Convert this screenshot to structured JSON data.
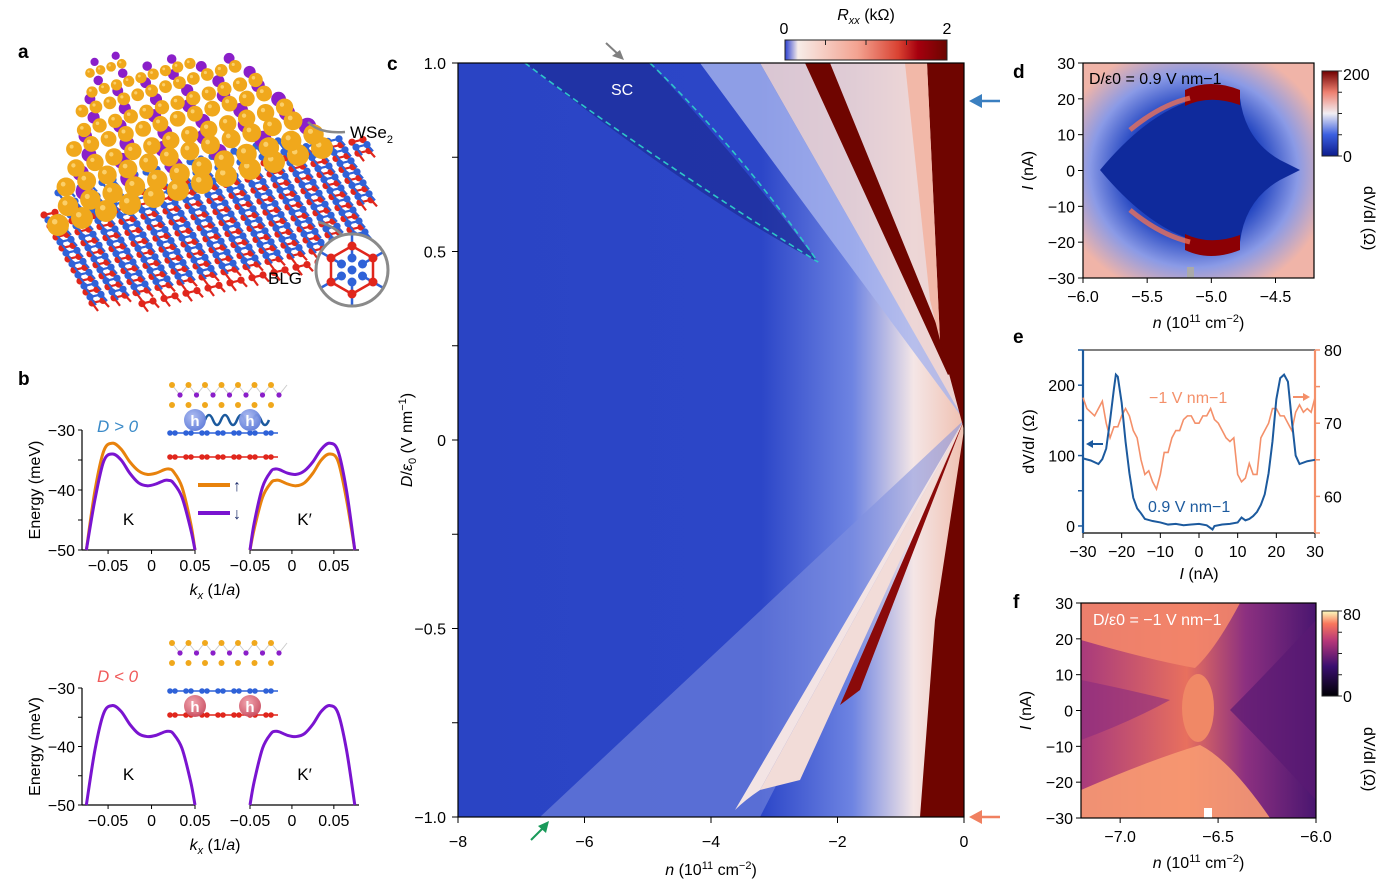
{
  "figure": {
    "panel_labels": [
      "a",
      "b",
      "c",
      "d",
      "e",
      "f"
    ]
  },
  "panel_a": {
    "wse2_label": "WSe",
    "wse2_subscript": "2",
    "blg_label": "BLG",
    "colors": {
      "selenium": "#f0a81c",
      "tungsten": "#8a1fc9",
      "top_graphene": "#2f62d8",
      "bottom_graphene": "#e0261c"
    }
  },
  "panel_b": {
    "top": {
      "condition": "D > 0",
      "condition_color": "#3a8ac8",
      "valley_left": "K",
      "valley_right": "K′",
      "hole_glyph": "h",
      "hole_color": "#6f8ee0"
    },
    "bottom": {
      "condition": "D < 0",
      "condition_color": "#f05a5a",
      "valley_left": "K",
      "valley_right": "K′",
      "hole_glyph": "h",
      "hole_color": "#d85a6e"
    },
    "legend": [
      {
        "label": "↑",
        "color": "#e8820c"
      },
      {
        "label": "↓",
        "color": "#7a14d0"
      }
    ]
  },
  "panel_c": {
    "sc_label": "SC",
    "colorbar": {
      "label": "R_xx (kΩ)",
      "label_main": "R",
      "label_sub": "xx",
      "label_unit": " (kΩ)",
      "min": "0",
      "max": "2"
    },
    "arrow_colors": {
      "top": "#808080",
      "bottom": "#1a9a5a",
      "right_top": "#3a7fc0",
      "right_bottom": "#f08060"
    }
  },
  "panel_d": {
    "annotation": "D/ε0 = 0.9 V nm−1",
    "colorbar": {
      "label": "dV/dI (Ω)",
      "min": "0",
      "max": "200"
    }
  },
  "panel_e": {
    "label_blue": "0.9 V nm−1",
    "label_orange": "−1 V nm−1"
  },
  "panel_f": {
    "annotation": "D/ε0 = −1 V nm−1",
    "colorbar": {
      "label": "dV/dI (Ω)",
      "min": "0",
      "max": "80"
    }
  },
  "chart_data": [
    {
      "id": "b-top",
      "type": "line",
      "title": "D > 0",
      "xlabel": "k_x (1/a)",
      "ylabel": "Energy (meV)",
      "ylim": [
        -50,
        -30
      ],
      "yticks": [
        "−30",
        "−40",
        "−50"
      ],
      "subplots": [
        {
          "valley": "K",
          "xlim": [
            -0.08,
            0.05
          ],
          "xticks": [
            "−0.05",
            "0",
            "0.05"
          ],
          "series": [
            {
              "name": "spin up",
              "color": "#e8820c",
              "x": [
                -0.075,
                -0.065,
                -0.055,
                -0.045,
                -0.035,
                -0.025,
                -0.015,
                -0.005,
                0.005,
                0.015,
                0.02,
                0.025,
                0.035,
                0.045,
                0.05
              ],
              "y": [
                -50,
                -40,
                -33.5,
                -32.2,
                -33.2,
                -35.3,
                -36.8,
                -37.4,
                -37.2,
                -36.6,
                -36.5,
                -36.9,
                -39.5,
                -45.5,
                -50
              ]
            },
            {
              "name": "spin down",
              "color": "#7a14d0",
              "x": [
                -0.075,
                -0.065,
                -0.055,
                -0.045,
                -0.035,
                -0.025,
                -0.015,
                -0.005,
                0.005,
                0.015,
                0.02,
                0.025,
                0.035,
                0.045,
                0.05
              ],
              "y": [
                -50,
                -41.5,
                -35.2,
                -34,
                -35,
                -37.2,
                -38.8,
                -39.3,
                -39,
                -38.4,
                -38.4,
                -38.8,
                -41.2,
                -46.5,
                -50
              ]
            }
          ]
        },
        {
          "valley": "K′",
          "xlim": [
            -0.05,
            0.08
          ],
          "xticks": [
            "−0.05",
            "0",
            "0.05"
          ],
          "series": [
            {
              "name": "spin up",
              "color": "#e8820c",
              "x": [
                -0.05,
                -0.045,
                -0.035,
                -0.025,
                -0.02,
                -0.015,
                -0.005,
                0.005,
                0.015,
                0.025,
                0.035,
                0.045,
                0.055,
                0.065,
                0.075
              ],
              "y": [
                -50,
                -46.5,
                -41.2,
                -38.8,
                -38.4,
                -38.4,
                -39,
                -39.3,
                -38.8,
                -37.2,
                -35,
                -34,
                -35.2,
                -41.5,
                -50
              ]
            },
            {
              "name": "spin down",
              "color": "#7a14d0",
              "x": [
                -0.05,
                -0.045,
                -0.035,
                -0.025,
                -0.02,
                -0.015,
                -0.005,
                0.005,
                0.015,
                0.025,
                0.035,
                0.045,
                0.055,
                0.065,
                0.075
              ],
              "y": [
                -50,
                -45.5,
                -39.5,
                -36.9,
                -36.5,
                -36.6,
                -37.2,
                -37.4,
                -36.8,
                -35.3,
                -33.2,
                -32.2,
                -33.5,
                -40,
                -50
              ]
            }
          ]
        }
      ]
    },
    {
      "id": "b-bottom",
      "type": "line",
      "title": "D < 0",
      "xlabel": "k_x (1/a)",
      "ylabel": "Energy (meV)",
      "ylim": [
        -50,
        -30
      ],
      "yticks": [
        "−30",
        "−40",
        "−50"
      ],
      "subplots": [
        {
          "valley": "K",
          "xlim": [
            -0.08,
            0.05
          ],
          "xticks": [
            "−0.05",
            "0",
            "0.05"
          ],
          "series": [
            {
              "name": "spin up/down (degenerate)",
              "color": "#7a14d0",
              "x": [
                -0.075,
                -0.065,
                -0.055,
                -0.045,
                -0.035,
                -0.025,
                -0.015,
                -0.005,
                0.005,
                0.015,
                0.02,
                0.025,
                0.035,
                0.045,
                0.05
              ],
              "y": [
                -50,
                -40.5,
                -34.3,
                -33,
                -34,
                -36.2,
                -37.8,
                -38.3,
                -38.1,
                -37.5,
                -37.4,
                -37.8,
                -40.3,
                -46,
                -50
              ]
            }
          ]
        },
        {
          "valley": "K′",
          "xlim": [
            -0.05,
            0.08
          ],
          "xticks": [
            "−0.05",
            "0",
            "0.05"
          ],
          "series": [
            {
              "name": "spin up/down (degenerate)",
              "color": "#7a14d0",
              "x": [
                -0.05,
                -0.045,
                -0.035,
                -0.025,
                -0.02,
                -0.015,
                -0.005,
                0.005,
                0.015,
                0.025,
                0.035,
                0.045,
                0.055,
                0.065,
                0.075
              ],
              "y": [
                -50,
                -46,
                -40.3,
                -37.8,
                -37.4,
                -37.5,
                -38.1,
                -38.3,
                -37.8,
                -36.2,
                -34,
                -33,
                -34.3,
                -40.5,
                -50
              ]
            }
          ]
        }
      ]
    },
    {
      "id": "c",
      "type": "heatmap",
      "title": "",
      "xlabel": "n (10^11 cm^-2)",
      "ylabel": "D/ε0 (V nm^-1)",
      "xlim": [
        -8,
        0
      ],
      "ylim": [
        -1.0,
        1.0
      ],
      "xticks": [
        -8,
        -6,
        -4,
        -2,
        0
      ],
      "yticks": [
        -1.0,
        -0.5,
        0,
        0.5,
        1.0
      ],
      "colorbar": {
        "label": "Rxx (kΩ)",
        "range": [
          0,
          2
        ]
      },
      "annotations": [
        {
          "text": "SC",
          "n": -5.3,
          "D": 0.93
        },
        {
          "type": "arrow",
          "color": "gray",
          "n": -5.3,
          "D": 1.0
        },
        {
          "type": "arrow",
          "color": "green",
          "n": -6.6,
          "D": -1.0
        },
        {
          "type": "arrow",
          "color": "blue",
          "n": 0,
          "D": 0.9
        },
        {
          "type": "arrow",
          "color": "orange",
          "n": 0,
          "D": -1.0
        }
      ]
    },
    {
      "id": "d",
      "type": "heatmap",
      "title": "D/ε0 = 0.9 V nm−1",
      "xlabel": "n (10^11 cm^-2)",
      "ylabel": "I (nA)",
      "xlim": [
        -6.0,
        -4.2
      ],
      "ylim": [
        -30,
        30
      ],
      "xticks": [
        "−6.0",
        "−5.5",
        "−5.0",
        "−4.5"
      ],
      "yticks": [
        "−30",
        "−20",
        "−10",
        "0",
        "10",
        "20",
        "30"
      ],
      "colorbar": {
        "label": "dV/dI (Ω)",
        "range": [
          0,
          200
        ]
      },
      "marker": {
        "n": -5.15,
        "color": "gray"
      }
    },
    {
      "id": "e",
      "type": "line",
      "title": "",
      "xlabel": "I (nA)",
      "ylabel": "dV/dI (Ω)",
      "xlim": [
        -30,
        30
      ],
      "ylim": [
        -10,
        250
      ],
      "ylim_right": [
        55,
        80
      ],
      "xticks": [
        "−30",
        "−20",
        "−10",
        "0",
        "10",
        "20",
        "30"
      ],
      "yticks": [
        "0",
        "100",
        "200"
      ],
      "yticks_right": [
        "60",
        "70",
        "80"
      ],
      "series": [
        {
          "name": "0.9 V nm−1",
          "axis": "left",
          "color": "#1c5a9e",
          "x": [
            -30,
            -28,
            -26,
            -25,
            -24,
            -23,
            -22,
            -21.5,
            -21,
            -20,
            -19,
            -18,
            -17,
            -16,
            -15,
            -14,
            -12,
            -10,
            -8,
            -6,
            -4,
            -2,
            0,
            2,
            3.5,
            4,
            6,
            8,
            10,
            11,
            12,
            13,
            14,
            15,
            16,
            17,
            18,
            19,
            20,
            21,
            22,
            23,
            24,
            25,
            26,
            28,
            30
          ],
          "y": [
            96,
            93,
            88,
            95,
            110,
            150,
            195,
            215,
            212,
            175,
            120,
            75,
            40,
            25,
            18,
            10,
            7,
            5,
            2,
            3,
            1,
            2,
            3,
            1,
            -5,
            0,
            2,
            3,
            5,
            12,
            8,
            10,
            14,
            20,
            30,
            45,
            75,
            120,
            180,
            210,
            215,
            205,
            150,
            100,
            88,
            92,
            94
          ]
        },
        {
          "name": "−1 V nm−1",
          "axis": "right",
          "color": "#f4906a",
          "x": [
            -30,
            -29,
            -28,
            -27,
            -26,
            -25,
            -24,
            -23,
            -22,
            -21,
            -20,
            -19,
            -18,
            -17,
            -16,
            -15,
            -14,
            -13,
            -12,
            -11,
            -10,
            -9,
            -8,
            -7,
            -6,
            -5,
            -4,
            -3,
            -2,
            -1,
            0,
            1,
            2,
            3,
            4,
            5,
            6,
            7,
            8,
            9,
            10,
            11,
            12,
            13,
            14,
            15,
            16,
            17,
            18,
            19,
            20,
            21,
            22,
            23,
            24,
            25,
            26,
            27,
            28,
            29,
            30
          ],
          "y": [
            73.5,
            72,
            71.5,
            71,
            72,
            73,
            70,
            68,
            69.5,
            69.5,
            71,
            72,
            71,
            69,
            68,
            65,
            63,
            63.5,
            62,
            61,
            63,
            66,
            66,
            68,
            69,
            69,
            70.5,
            71,
            71,
            70,
            70,
            71,
            71,
            72,
            70.5,
            70,
            69,
            68,
            67.5,
            68,
            63,
            62,
            62.5,
            64.5,
            63,
            63,
            68,
            69,
            70,
            72,
            72,
            71,
            71,
            70,
            69,
            71.5,
            72.5,
            71.5,
            72,
            71.5,
            73.5
          ]
        }
      ]
    },
    {
      "id": "f",
      "type": "heatmap",
      "title": "D/ε0 = −1 V nm−1",
      "xlabel": "n (10^11 cm^-2)",
      "ylabel": "I (nA)",
      "xlim": [
        -7.2,
        -6.0
      ],
      "ylim": [
        -30,
        30
      ],
      "xticks": [
        "−7.0",
        "−6.5",
        "−6.0"
      ],
      "yticks": [
        "−30",
        "−20",
        "−10",
        "0",
        "10",
        "20",
        "30"
      ],
      "colorbar": {
        "label": "dV/dI (Ω)",
        "range": [
          0,
          80
        ]
      },
      "marker": {
        "n": -6.55,
        "color": "white"
      }
    }
  ]
}
